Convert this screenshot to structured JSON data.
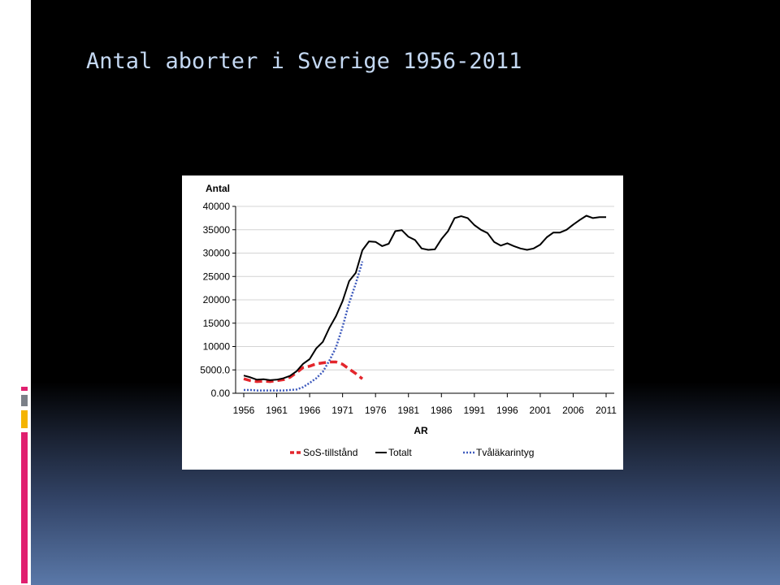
{
  "slide": {
    "title": "Antal aborter i Sverige 1956-2011"
  },
  "colors": {
    "background": "#000000",
    "title": "#c4d8f2",
    "accent_pink": "#e0206f",
    "accent_gray": "#7b8088",
    "accent_gold": "#f4b400",
    "sos": "#e3262c",
    "totalt": "#000000",
    "tvalakar": "#3f5bbd"
  },
  "chart_data": {
    "type": "line",
    "title": "",
    "xlabel": "AR",
    "ylabel": "Antal",
    "xlim": [
      1956,
      2011
    ],
    "ylim": [
      0,
      40000
    ],
    "x_ticks": [
      1956,
      1961,
      1966,
      1971,
      1976,
      1981,
      1986,
      1991,
      1996,
      2001,
      2006,
      2011
    ],
    "y_ticks": [
      0,
      5000,
      10000,
      15000,
      20000,
      25000,
      30000,
      35000,
      40000
    ],
    "y_tick_labels": [
      "0.00",
      "5000.0",
      "10000",
      "15000",
      "20000",
      "25000",
      "30000",
      "35000",
      "40000"
    ],
    "grid": "horizontal",
    "legend_position": "bottom",
    "series": [
      {
        "name": "SoS-tillstånd",
        "style": "dashed",
        "x": [
          1956,
          1957,
          1958,
          1959,
          1960,
          1961,
          1962,
          1963,
          1964,
          1965,
          1966,
          1967,
          1968,
          1969,
          1970,
          1971,
          1972,
          1973,
          1974
        ],
        "y": [
          3100,
          2700,
          2500,
          2600,
          2500,
          2700,
          2900,
          3400,
          4400,
          5500,
          5800,
          6300,
          6500,
          6700,
          6700,
          6200,
          5200,
          4200,
          3100
        ]
      },
      {
        "name": "Totalt",
        "style": "solid",
        "x": [
          1956,
          1957,
          1958,
          1959,
          1960,
          1961,
          1962,
          1963,
          1964,
          1965,
          1966,
          1967,
          1968,
          1969,
          1970,
          1971,
          1972,
          1973,
          1974,
          1975,
          1976,
          1977,
          1978,
          1979,
          1980,
          1981,
          1982,
          1983,
          1984,
          1985,
          1986,
          1987,
          1988,
          1989,
          1990,
          1991,
          1992,
          1993,
          1994,
          1995,
          1996,
          1997,
          1998,
          1999,
          2000,
          2001,
          2002,
          2003,
          2004,
          2005,
          2006,
          2007,
          2008,
          2009,
          2010,
          2011
        ],
        "y": [
          3800,
          3400,
          2900,
          3000,
          2800,
          2900,
          3200,
          3700,
          4700,
          6300,
          7300,
          9600,
          11000,
          14000,
          16500,
          19700,
          24000,
          25800,
          30600,
          32500,
          32400,
          31500,
          32000,
          34700,
          34900,
          33500,
          32800,
          31000,
          30700,
          30800,
          33000,
          34700,
          37500,
          37900,
          37500,
          36000,
          35000,
          34300,
          32400,
          31600,
          32100,
          31500,
          31000,
          30700,
          31000,
          31800,
          33400,
          34400,
          34400,
          35000,
          36100,
          37100,
          38000,
          37500,
          37700,
          37700
        ]
      },
      {
        "name": "Tvåläkarintyg",
        "style": "dotted",
        "x": [
          1956,
          1957,
          1958,
          1959,
          1960,
          1961,
          1962,
          1963,
          1964,
          1965,
          1966,
          1967,
          1968,
          1969,
          1970,
          1971,
          1972,
          1973,
          1974
        ],
        "y": [
          700,
          700,
          600,
          600,
          600,
          600,
          600,
          700,
          800,
          1300,
          2200,
          3200,
          4600,
          7000,
          9800,
          14200,
          19300,
          23500,
          28200
        ]
      }
    ]
  }
}
